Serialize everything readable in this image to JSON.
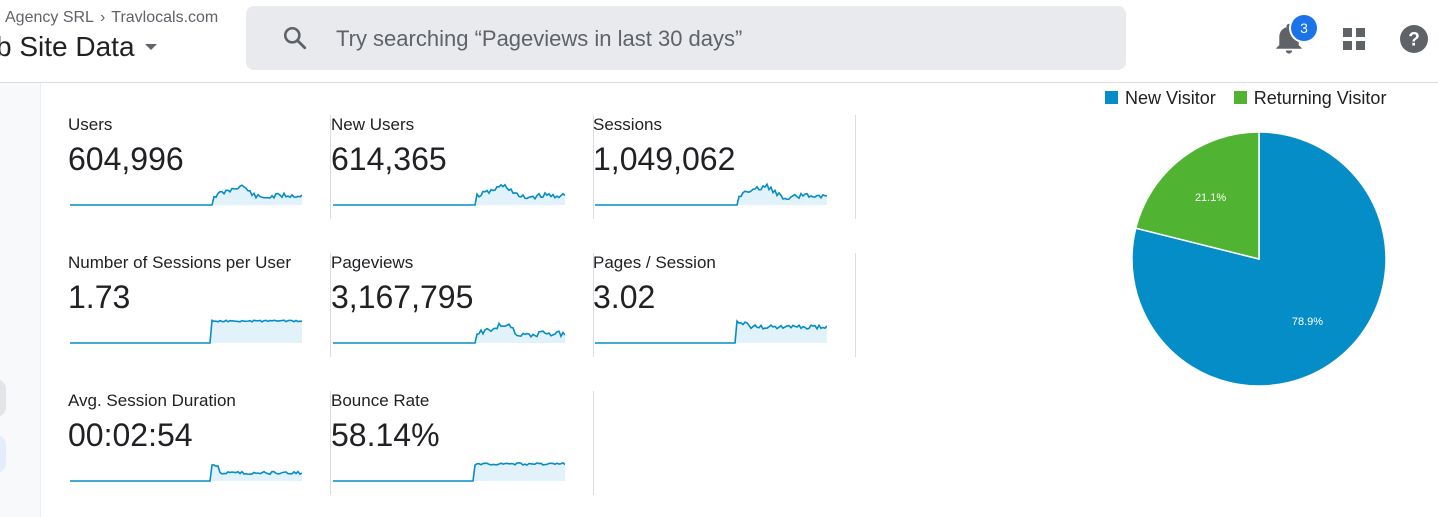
{
  "header": {
    "breadcrumb_account": "Agency SRL",
    "breadcrumb_property": "Travlocals.com",
    "view_name": "b Site Data",
    "search_placeholder": "Try searching “Pageviews in last 30 days”",
    "notification_count": "3"
  },
  "icons": {
    "search": "search-icon",
    "notifications": "bell-icon",
    "apps": "apps-grid-icon",
    "help": "help-icon"
  },
  "colors": {
    "accent": "#1a73e8",
    "sparkline": "#058dc7",
    "sparkline_fill": "#e1f2fa",
    "new_visitor": "#058dc7",
    "returning_visitor": "#50b432"
  },
  "metrics": [
    {
      "label": "Users",
      "value": "604,996"
    },
    {
      "label": "New Users",
      "value": "614,365"
    },
    {
      "label": "Sessions",
      "value": "1,049,062"
    },
    {
      "label": "Number of Sessions per User",
      "value": "1.73"
    },
    {
      "label": "Pageviews",
      "value": "3,167,795"
    },
    {
      "label": "Pages / Session",
      "value": "3.02"
    },
    {
      "label": "Avg. Session Duration",
      "value": "00:02:54"
    },
    {
      "label": "Bounce Rate",
      "value": "58.14%"
    }
  ],
  "chart_data": {
    "type": "pie",
    "legend_position": "top",
    "series": [
      {
        "name": "New Visitor",
        "value": 78.9,
        "label": "78.9%",
        "color": "#058dc7"
      },
      {
        "name": "Returning Visitor",
        "value": 21.1,
        "label": "21.1%",
        "color": "#50b432"
      }
    ]
  }
}
